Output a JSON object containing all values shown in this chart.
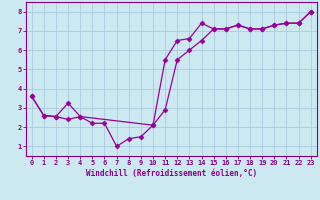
{
  "xlabel": "Windchill (Refroidissement éolien,°C)",
  "line1_x": [
    0,
    1,
    2,
    3,
    4,
    5,
    6,
    7,
    8,
    9,
    10,
    11,
    12,
    13,
    14,
    15,
    16,
    17,
    18,
    19,
    20,
    21,
    22,
    23
  ],
  "line1_y": [
    3.6,
    2.6,
    2.55,
    2.4,
    2.55,
    2.2,
    2.2,
    1.0,
    1.4,
    1.5,
    2.1,
    2.9,
    5.5,
    6.0,
    6.5,
    7.1,
    7.1,
    7.3,
    7.1,
    7.1,
    7.3,
    7.4,
    7.4,
    8.0
  ],
  "line2_x": [
    0,
    1,
    2,
    3,
    4,
    10,
    11,
    12,
    13,
    14,
    15,
    16,
    17,
    18,
    19,
    20,
    21,
    22,
    23
  ],
  "line2_y": [
    3.6,
    2.6,
    2.55,
    3.25,
    2.55,
    2.1,
    5.5,
    6.5,
    6.6,
    7.4,
    7.1,
    7.1,
    7.3,
    7.1,
    7.1,
    7.3,
    7.4,
    7.4,
    8.0
  ],
  "line_color": "#990099",
  "marker": "D",
  "marker_size": 2.5,
  "bg_color": "#cce8f0",
  "grid_color": "#aaccdd",
  "axes_color": "#880088",
  "xlim": [
    -0.5,
    23.5
  ],
  "ylim": [
    0.5,
    8.5
  ],
  "xticks": [
    0,
    1,
    2,
    3,
    4,
    5,
    6,
    7,
    8,
    9,
    10,
    11,
    12,
    13,
    14,
    15,
    16,
    17,
    18,
    19,
    20,
    21,
    22,
    23
  ],
  "yticks": [
    1,
    2,
    3,
    4,
    5,
    6,
    7,
    8
  ]
}
